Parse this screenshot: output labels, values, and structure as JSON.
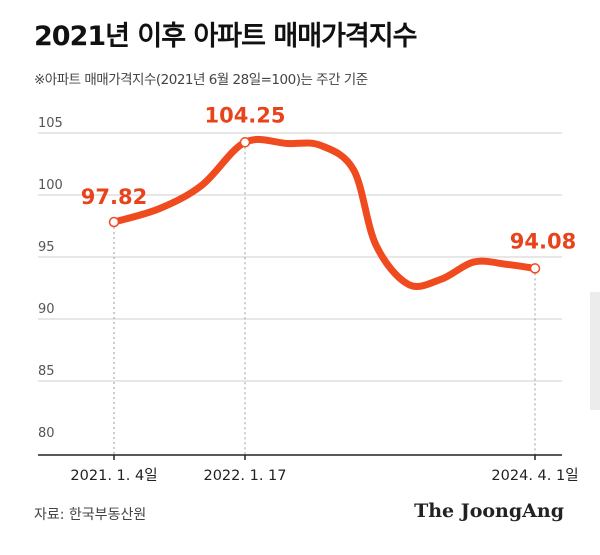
{
  "title": "2021년 이후 아파트 매매가격지수",
  "subtitle": "※아파트 매매가격지수(2021년 6월 28일=100)는 주간 기준",
  "source": "자료: 한국부동산원",
  "logo": "The JoongAng",
  "colors": {
    "line": "#f04a1f",
    "label": "#e8431a",
    "grid": "#cfcfcf",
    "axis": "#222222"
  },
  "chart_data": {
    "type": "line",
    "ylim": [
      80,
      107
    ],
    "yticks": [
      80,
      85,
      90,
      95,
      100,
      105
    ],
    "xticks": [
      "2021. 1. 4일",
      "2022. 1. 17",
      "2024. 4. 1일"
    ],
    "x": [
      "2021-01-04",
      "2021-05",
      "2021-09",
      "2022-01-17",
      "2022-05",
      "2022-08",
      "2022-11",
      "2023-01",
      "2023-04",
      "2023-07",
      "2023-10",
      "2024-01",
      "2024-04-01"
    ],
    "series": [
      {
        "values": [
          97.82,
          98.9,
          100.8,
          104.25,
          104.15,
          104.0,
          102.0,
          96.0,
          92.8,
          93.2,
          94.6,
          94.4,
          94.08
        ]
      }
    ],
    "annotations": [
      {
        "x": "2021-01-04",
        "y": 97.82,
        "label": "97.82"
      },
      {
        "x": "2022-01-17",
        "y": 104.25,
        "label": "104.25"
      },
      {
        "x": "2024-04-01",
        "y": 94.08,
        "label": "94.08"
      }
    ]
  }
}
